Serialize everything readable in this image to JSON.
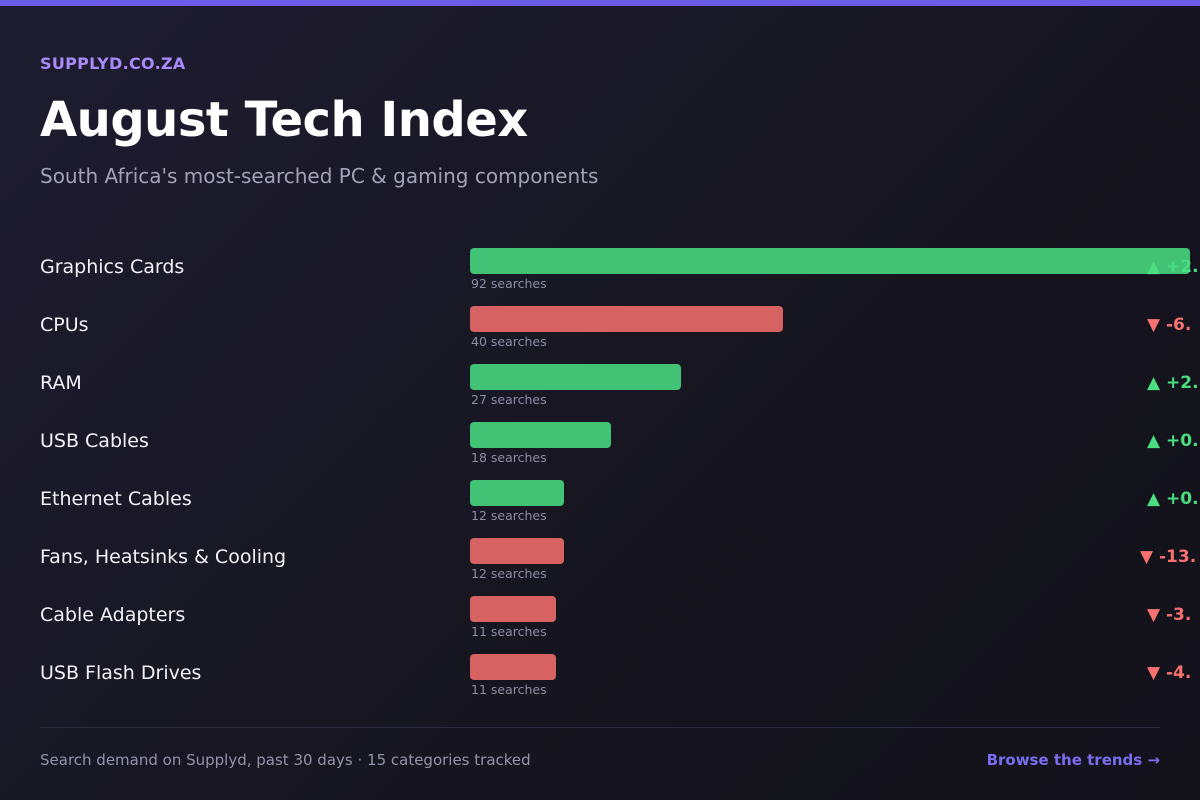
{
  "header": {
    "brand": "SUPPLYD.CO.ZA",
    "title": "August Tech Index",
    "subtitle": "South Africa's most-searched PC & gaming components"
  },
  "colors": {
    "accent": "#6c5ce7",
    "up": "#42c274",
    "down": "#d66262",
    "up_text": "#4ade80",
    "down_text": "#f87171"
  },
  "chart_data": {
    "type": "bar",
    "orientation": "horizontal",
    "categories": [
      "Graphics Cards",
      "CPUs",
      "RAM",
      "USB Cables",
      "Ethernet Cables",
      "Fans, Heatsinks & Cooling",
      "Cable Adapters",
      "USB Flash Drives"
    ],
    "values": [
      92,
      40,
      27,
      18,
      12,
      12,
      11,
      11
    ],
    "value_labels": [
      "92 searches",
      "40 searches",
      "27 searches",
      "18 searches",
      "12 searches",
      "12 searches",
      "11 searches",
      "11 searches"
    ],
    "directions": [
      "up",
      "down",
      "up",
      "up",
      "up",
      "down",
      "down",
      "down"
    ],
    "change_labels": [
      "+2.",
      "-6.",
      "+2.",
      "+0.",
      "+0.",
      "-13.",
      "-3.",
      "-4."
    ],
    "xlim": [
      0,
      92
    ],
    "title": "August Tech Index"
  },
  "footer": {
    "note": "Search demand on Supplyd, past 30 days · 15 categories tracked",
    "link": "Browse the trends →"
  }
}
